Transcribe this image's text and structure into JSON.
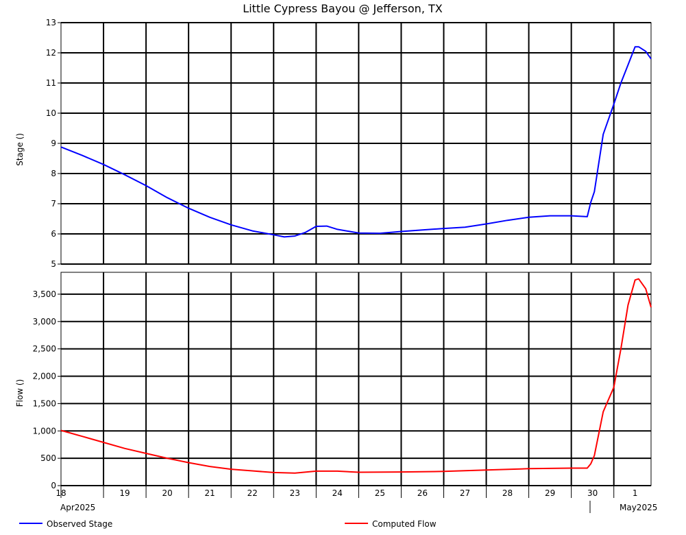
{
  "chart_data": {
    "type": "line",
    "title": "Little Cypress Bayou @ Jefferson, TX",
    "x_day_labels": [
      "18",
      "19",
      "20",
      "21",
      "22",
      "23",
      "24",
      "25",
      "26",
      "27",
      "28",
      "29",
      "30",
      "1"
    ],
    "x_sublabels": [
      "Apr2025",
      "May2025"
    ],
    "x_range": [
      "2025-04-18T00:00",
      "2025-05-01T21:00"
    ],
    "grid": true,
    "legend_position": "bottom",
    "panels": [
      {
        "ylabel": "Stage ()",
        "ylim": [
          5,
          13
        ],
        "yticks": [
          {
            "v": 5,
            "label": "5"
          },
          {
            "v": 6,
            "label": "6"
          },
          {
            "v": 7,
            "label": "7"
          },
          {
            "v": 8,
            "label": "8"
          },
          {
            "v": 9,
            "label": "9"
          },
          {
            "v": 10,
            "label": "10"
          },
          {
            "v": 11,
            "label": "11"
          },
          {
            "v": 12,
            "label": "12"
          },
          {
            "v": 13,
            "label": "13"
          }
        ],
        "series": [
          {
            "name": "Observed Stage",
            "color": "#0000ff",
            "points": [
              [
                "2025-04-18T00:00",
                8.88
              ],
              [
                "2025-04-18T12:00",
                8.6
              ],
              [
                "2025-04-19T00:00",
                8.3
              ],
              [
                "2025-04-19T12:00",
                7.96
              ],
              [
                "2025-04-20T00:00",
                7.6
              ],
              [
                "2025-04-20T12:00",
                7.2
              ],
              [
                "2025-04-21T00:00",
                6.85
              ],
              [
                "2025-04-21T12:00",
                6.55
              ],
              [
                "2025-04-22T00:00",
                6.3
              ],
              [
                "2025-04-22T12:00",
                6.1
              ],
              [
                "2025-04-23T00:00",
                5.97
              ],
              [
                "2025-04-23T06:00",
                5.9
              ],
              [
                "2025-04-23T12:00",
                5.93
              ],
              [
                "2025-04-23T18:00",
                6.05
              ],
              [
                "2025-04-24T00:00",
                6.25
              ],
              [
                "2025-04-24T06:00",
                6.26
              ],
              [
                "2025-04-24T12:00",
                6.15
              ],
              [
                "2025-04-25T00:00",
                6.03
              ],
              [
                "2025-04-25T12:00",
                6.02
              ],
              [
                "2025-04-26T00:00",
                6.08
              ],
              [
                "2025-04-26T12:00",
                6.13
              ],
              [
                "2025-04-27T00:00",
                6.18
              ],
              [
                "2025-04-27T12:00",
                6.22
              ],
              [
                "2025-04-28T00:00",
                6.33
              ],
              [
                "2025-04-28T12:00",
                6.45
              ],
              [
                "2025-04-29T00:00",
                6.55
              ],
              [
                "2025-04-29T12:00",
                6.6
              ],
              [
                "2025-04-30T00:00",
                6.6
              ],
              [
                "2025-04-30T09:00",
                6.57
              ],
              [
                "2025-04-30T11:00",
                7.05
              ],
              [
                "2025-04-30T13:00",
                7.4
              ],
              [
                "2025-04-30T18:00",
                9.3
              ],
              [
                "2025-05-01T00:00",
                10.3
              ],
              [
                "2025-05-01T04:00",
                11.0
              ],
              [
                "2025-05-01T08:00",
                11.6
              ],
              [
                "2025-05-01T12:00",
                12.2
              ],
              [
                "2025-05-01T14:00",
                12.2
              ],
              [
                "2025-05-01T18:00",
                12.05
              ],
              [
                "2025-05-01T21:00",
                11.8
              ]
            ]
          }
        ]
      },
      {
        "ylabel": "Flow ()",
        "ylim": [
          0,
          3900
        ],
        "yticks": [
          {
            "v": 0,
            "label": "0"
          },
          {
            "v": 500,
            "label": "500"
          },
          {
            "v": 1000,
            "label": "1,000"
          },
          {
            "v": 1500,
            "label": "1,500"
          },
          {
            "v": 2000,
            "label": "2,000"
          },
          {
            "v": 2500,
            "label": "2,500"
          },
          {
            "v": 3000,
            "label": "3,000"
          },
          {
            "v": 3500,
            "label": "3,500"
          }
        ],
        "series": [
          {
            "name": "Computed Flow",
            "color": "#ff0000",
            "points": [
              [
                "2025-04-18T00:00",
                1010
              ],
              [
                "2025-04-18T12:00",
                900
              ],
              [
                "2025-04-19T00:00",
                790
              ],
              [
                "2025-04-19T12:00",
                680
              ],
              [
                "2025-04-20T00:00",
                590
              ],
              [
                "2025-04-20T12:00",
                500
              ],
              [
                "2025-04-21T00:00",
                420
              ],
              [
                "2025-04-21T12:00",
                350
              ],
              [
                "2025-04-22T00:00",
                300
              ],
              [
                "2025-04-22T12:00",
                270
              ],
              [
                "2025-04-23T00:00",
                240
              ],
              [
                "2025-04-23T12:00",
                230
              ],
              [
                "2025-04-24T00:00",
                265
              ],
              [
                "2025-04-24T12:00",
                265
              ],
              [
                "2025-04-25T00:00",
                245
              ],
              [
                "2025-04-26T00:00",
                250
              ],
              [
                "2025-04-27T00:00",
                260
              ],
              [
                "2025-04-28T00:00",
                285
              ],
              [
                "2025-04-29T00:00",
                310
              ],
              [
                "2025-04-30T00:00",
                320
              ],
              [
                "2025-04-30T09:00",
                320
              ],
              [
                "2025-04-30T11:00",
                400
              ],
              [
                "2025-04-30T13:00",
                550
              ],
              [
                "2025-04-30T18:00",
                1350
              ],
              [
                "2025-05-01T00:00",
                1800
              ],
              [
                "2025-05-01T04:00",
                2500
              ],
              [
                "2025-05-01T08:00",
                3300
              ],
              [
                "2025-05-01T12:00",
                3760
              ],
              [
                "2025-05-01T14:00",
                3780
              ],
              [
                "2025-05-01T18:00",
                3600
              ],
              [
                "2025-05-01T21:00",
                3260
              ]
            ]
          }
        ]
      }
    ]
  }
}
